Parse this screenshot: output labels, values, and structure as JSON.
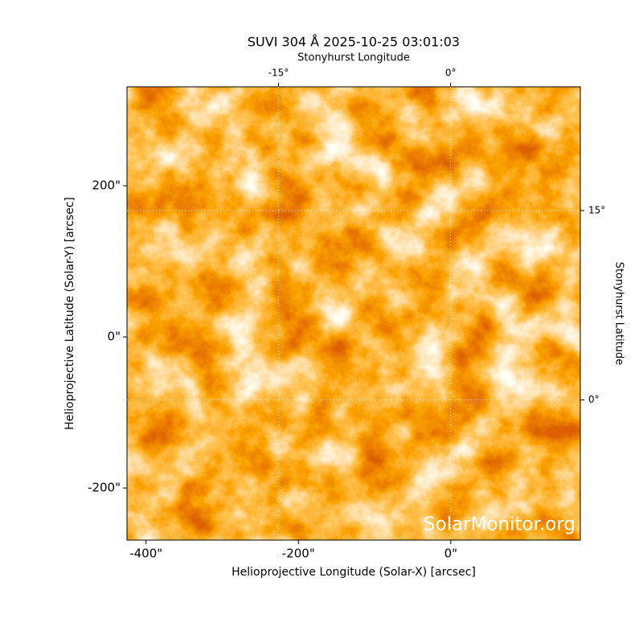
{
  "chart_data": {
    "type": "image",
    "title": "SUVI 304 Å 2025-10-25 03:01:03",
    "xlabel": "Helioprojective Longitude (Solar-X) [arcsec]",
    "ylabel": "Helioprojective Latitude (Solar-Y) [arcsec]",
    "x2label": "Stonyhurst Longitude",
    "y2label": "Stonyhurst Latitude",
    "annotation": "SolarMonitor.org",
    "xlim": [
      -425,
      170
    ],
    "ylim": [
      -269,
      331
    ],
    "xticks": [
      {
        "value": -400,
        "label": "-400\""
      },
      {
        "value": -200,
        "label": "-200\""
      },
      {
        "value": 0,
        "label": "0\""
      }
    ],
    "yticks": [
      {
        "value": -200,
        "label": "-200\""
      },
      {
        "value": 0,
        "label": "0\""
      },
      {
        "value": 200,
        "label": "200\""
      }
    ],
    "x2lim": [
      -28.2,
      11.3
    ],
    "x2ticks": [
      {
        "value": -15,
        "label": "-15°"
      },
      {
        "value": 0,
        "label": "0°"
      }
    ],
    "y2lim": [
      -11.1,
      24.8
    ],
    "y2ticks": [
      {
        "value": 0,
        "label": "0°"
      },
      {
        "value": 15,
        "label": "15°"
      }
    ],
    "grid": true
  }
}
